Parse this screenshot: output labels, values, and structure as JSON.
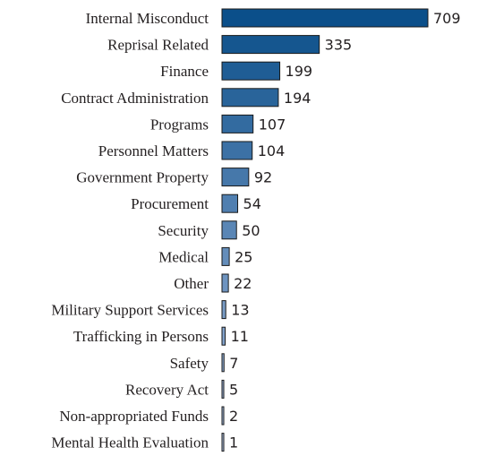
{
  "chart_data": {
    "type": "bar",
    "orientation": "horizontal",
    "title": "",
    "xlabel": "",
    "ylabel": "",
    "categories": [
      "Internal Misconduct",
      "Reprisal Related",
      "Finance",
      "Contract Administration",
      "Programs",
      "Personnel Matters",
      "Government Property",
      "Procurement",
      "Security",
      "Medical",
      "Other",
      "Military Support Services",
      "Trafficking in Persons",
      "Safety",
      "Recovery Act",
      "Non-appropriated  Funds",
      "Mental Health Evaluation"
    ],
    "values": [
      709,
      335,
      199,
      194,
      107,
      104,
      92,
      54,
      50,
      25,
      22,
      13,
      11,
      7,
      5,
      2,
      1
    ],
    "value_labels": [
      "709",
      "335",
      "199",
      "194",
      "107",
      "104",
      "92",
      "54",
      "50",
      "25",
      "22",
      "13",
      "11",
      "7",
      "5",
      "2",
      "1"
    ],
    "xlim": [
      0,
      709
    ],
    "grid": false,
    "legend": "none",
    "colors": {
      "dark": "#0b4f8a",
      "light": "#a9bde0",
      "outline": "#1a1a1a"
    }
  }
}
